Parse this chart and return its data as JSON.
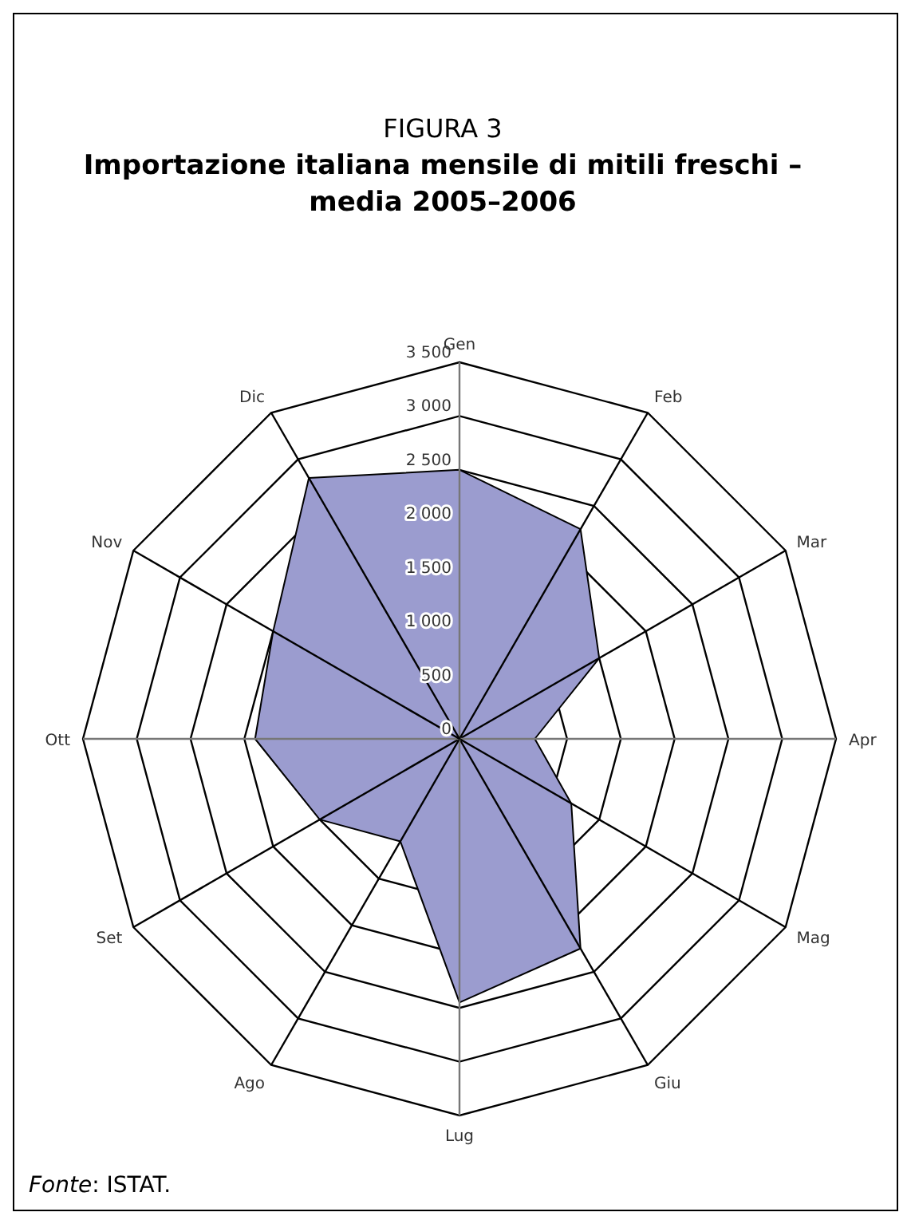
{
  "chart_data": {
    "type": "radar",
    "title": "FIGURA 3",
    "subtitle": "Importazione italiana mensile di mitili freschi – media 2005–2006",
    "categories": [
      "Gen",
      "Feb",
      "Mar",
      "Apr",
      "Mag",
      "Giu",
      "Lug",
      "Ago",
      "Set",
      "Ott",
      "Nov",
      "Dic"
    ],
    "series": [
      {
        "color": "#9b9ccf",
        "values": [
          2500,
          2250,
          1500,
          700,
          1200,
          2250,
          2450,
          1100,
          1500,
          1900,
          2000,
          2800
        ]
      }
    ],
    "ylim": [
      0,
      3500
    ],
    "yticks": [
      {
        "value": 0,
        "label": "0"
      },
      {
        "value": 500,
        "label": "500"
      },
      {
        "value": 1000,
        "label": "1 000"
      },
      {
        "value": 1500,
        "label": "1 500"
      },
      {
        "value": 2000,
        "label": "2 000"
      },
      {
        "value": 2500,
        "label": "2 500"
      },
      {
        "value": 3000,
        "label": "3 000"
      },
      {
        "value": 3500,
        "label": "3 500"
      }
    ],
    "annotations": [
      "Fonte: ISTAT."
    ]
  }
}
